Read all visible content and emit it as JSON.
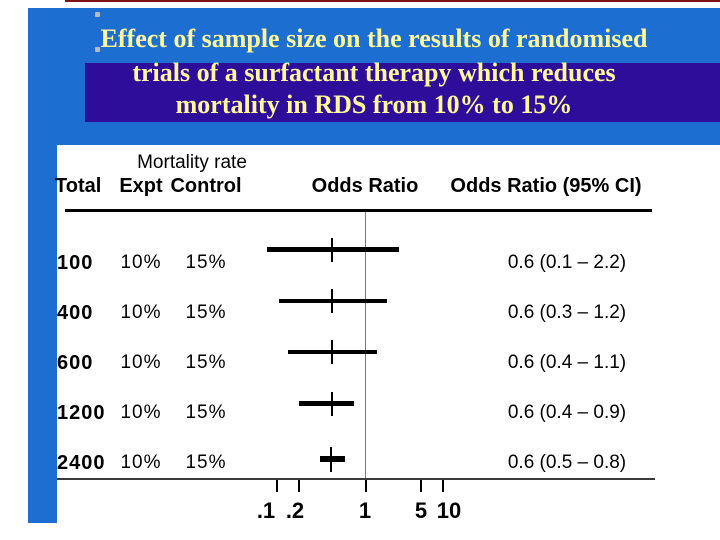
{
  "slide": {
    "title": {
      "line1": "Effect of sample size on the results of randomised",
      "line2": "trials of a surfactant therapy which reduces",
      "line3": "mortality in RDS from 10% to 15%"
    }
  },
  "colors": {
    "banner_blue": "#1C6ED0",
    "highlight_purple": "#2F0D9B",
    "title_yellow": "#FFF799",
    "top_line_maroon": "#7E1113",
    "bar_black": "#000000",
    "reference_line_gray": "#7a7a7a"
  },
  "chart_data": {
    "type": "table",
    "subtype": "forest-plot",
    "title": "Effect of sample size on the results of randomised trials of a surfactant therapy which reduces mortality in RDS from 10% to 15%",
    "column_group_header": "Mortality rate",
    "columns": [
      "Total",
      "Expt",
      "Control",
      "Odds Ratio",
      "Odds Ratio (95% CI)"
    ],
    "axis": {
      "scale": "log",
      "tick_labels": [
        ".1",
        ".2",
        "1",
        "5",
        "10"
      ],
      "tick_values": [
        0.1,
        0.2,
        1,
        5,
        10
      ],
      "reference_line_at": 1,
      "grid": "off",
      "legend": "none"
    },
    "rows": [
      {
        "total": "100",
        "expt": "10%",
        "control": "15%",
        "odds_ratio": 0.6,
        "ci_low": 0.1,
        "ci_high": 2.2,
        "ci_text": "0.6 (0.1 – 2.2)"
      },
      {
        "total": "400",
        "expt": "10%",
        "control": "15%",
        "odds_ratio": 0.6,
        "ci_low": 0.3,
        "ci_high": 1.2,
        "ci_text": "0.6 (0.3 – 1.2)"
      },
      {
        "total": "600",
        "expt": "10%",
        "control": "15%",
        "odds_ratio": 0.6,
        "ci_low": 0.4,
        "ci_high": 1.1,
        "ci_text": "0.6 (0.4 – 1.1)"
      },
      {
        "total": "1200",
        "expt": "10%",
        "control": "15%",
        "odds_ratio": 0.6,
        "ci_low": 0.4,
        "ci_high": 0.9,
        "ci_text": "0.6 (0.4 – 0.9)"
      },
      {
        "total": "2400",
        "expt": "10%",
        "control": "15%",
        "odds_ratio": 0.6,
        "ci_low": 0.5,
        "ci_high": 0.8,
        "ci_text": "0.6 (0.5 – 0.8)"
      }
    ]
  }
}
